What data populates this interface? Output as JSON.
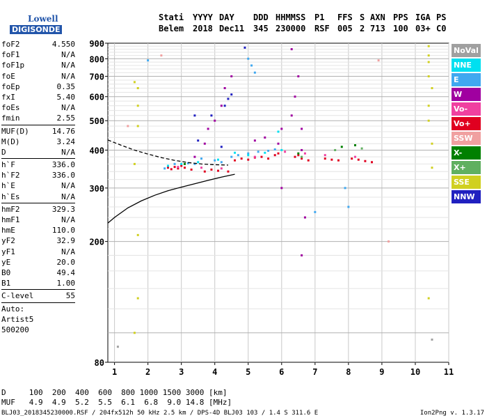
{
  "logo": {
    "line1": "Lowell",
    "line2": "DIGISONDE"
  },
  "header": {
    "row1": [
      "Stati",
      "YYYY",
      "DAY",
      "DDD",
      "HHMMSS",
      "P1",
      "FFS",
      "S",
      "AXN",
      "PPS",
      "IGA",
      "PS"
    ],
    "row2": [
      "Belem",
      "2018",
      "Dec11",
      "345",
      "230000",
      "RSF",
      "005",
      "2",
      "713",
      "100",
      "03+",
      "C0"
    ]
  },
  "params": [
    {
      "label": "foF2",
      "value": "4.550"
    },
    {
      "label": "foF1",
      "value": "N/A"
    },
    {
      "label": "foF1p",
      "value": "N/A"
    },
    {
      "label": "foE",
      "value": "N/A"
    },
    {
      "label": "foEp",
      "value": "0.35"
    },
    {
      "label": "fxI",
      "value": "5.40"
    },
    {
      "label": "foEs",
      "value": "N/A"
    },
    {
      "label": "fmin",
      "value": "2.55"
    },
    {
      "sep": true
    },
    {
      "label": "MUF(D)",
      "value": "14.76"
    },
    {
      "label": "M(D)",
      "value": "3.24"
    },
    {
      "label": "D",
      "value": "N/A"
    },
    {
      "sep": true
    },
    {
      "label": "h`F",
      "value": "336.0"
    },
    {
      "label": "h`F2",
      "value": "336.0"
    },
    {
      "label": "h`E",
      "value": "N/A"
    },
    {
      "label": "h`Es",
      "value": "N/A"
    },
    {
      "sep": true
    },
    {
      "label": "hmF2",
      "value": "329.3"
    },
    {
      "label": "hmF1",
      "value": "N/A"
    },
    {
      "label": "hmE",
      "value": "110.0"
    },
    {
      "label": "yF2",
      "value": "32.9"
    },
    {
      "label": "yF1",
      "value": "N/A"
    },
    {
      "label": "yE",
      "value": "20.0"
    },
    {
      "label": "B0",
      "value": "49.4"
    },
    {
      "label": "B1",
      "value": "1.00"
    },
    {
      "sep": true
    },
    {
      "label": "C-level",
      "value": "55"
    },
    {
      "sep": true
    },
    {
      "label": "Auto:",
      "value": ""
    },
    {
      "label": "Artist5",
      "value": ""
    },
    {
      "label": "500200",
      "value": ""
    }
  ],
  "legend": [
    {
      "label": "NoVal",
      "color": "#a0a0a0"
    },
    {
      "label": "NNE",
      "color": "#00e0f0"
    },
    {
      "label": "E",
      "color": "#40a8f0"
    },
    {
      "label": "W",
      "color": "#a000a0"
    },
    {
      "label": "Vo-",
      "color": "#f040a0"
    },
    {
      "label": "Vo+",
      "color": "#e00020"
    },
    {
      "label": "SSW",
      "color": "#f0a0a0"
    },
    {
      "label": "X-",
      "color": "#008000"
    },
    {
      "label": "X+",
      "color": "#60b060"
    },
    {
      "label": "SSE",
      "color": "#d0d020"
    },
    {
      "label": "NNW",
      "color": "#2020c0"
    }
  ],
  "footer": {
    "d_row": "D     100  200  400  600  800 1000 1500 3000 [km]",
    "muf_row": "MUF   4.9  4.9  5.2  5.5  6.1  6.8  9.0 14.8 [MHz]",
    "info": "BLJ03_2018345230000.RSF / 204fx512h 50 kHz 2.5 km / DPS-4D BLJ03 103 / 1.4 S 311.6 E",
    "version": "Ion2Png v. 1.3.17"
  },
  "chart_data": {
    "type": "scatter",
    "title": "",
    "xlabel": "",
    "ylabel": "",
    "xlim": [
      0.8,
      11
    ],
    "ylim": [
      80,
      900
    ],
    "x_ticks": [
      1,
      2,
      3,
      4,
      5,
      6,
      7,
      8,
      9,
      10,
      11
    ],
    "y_ticks": [
      80,
      200,
      300,
      400,
      500,
      600,
      700,
      800,
      900
    ],
    "y_scale": "log",
    "grid": true,
    "traces": [
      {
        "name": "",
        "style": "dashed",
        "color": "#000000",
        "x": [
          0.8,
          1.2,
          1.6,
          2.0,
          2.4,
          2.8,
          3.2,
          3.6,
          4.0,
          4.4
        ],
        "y": [
          432,
          415,
          400,
          388,
          378,
          370,
          364,
          360,
          358,
          357
        ]
      },
      {
        "name": "",
        "style": "solid",
        "color": "#000000",
        "x": [
          0.8,
          1.0,
          1.4,
          1.8,
          2.2,
          2.6,
          3.0,
          3.4,
          3.8,
          4.2,
          4.6
        ],
        "y": [
          230,
          240,
          258,
          272,
          284,
          294,
          302,
          310,
          318,
          326,
          333
        ]
      }
    ],
    "points": [
      {
        "c": "#e00020",
        "pts": [
          [
            2.6,
            350
          ],
          [
            2.7,
            346
          ],
          [
            2.8,
            352
          ],
          [
            2.9,
            348
          ],
          [
            3.0,
            355
          ],
          [
            3.1,
            350
          ],
          [
            3.3,
            345
          ],
          [
            3.7,
            340
          ],
          [
            3.9,
            345
          ],
          [
            4.1,
            342
          ],
          [
            4.4,
            340
          ],
          [
            4.6,
            370
          ],
          [
            4.8,
            375
          ],
          [
            5.0,
            372
          ],
          [
            5.2,
            378
          ],
          [
            5.4,
            380
          ],
          [
            5.6,
            375
          ],
          [
            5.8,
            385
          ],
          [
            5.9,
            390
          ],
          [
            6.4,
            380
          ],
          [
            6.5,
            385
          ],
          [
            6.6,
            375
          ],
          [
            6.8,
            370
          ],
          [
            7.3,
            375
          ],
          [
            7.5,
            372
          ],
          [
            7.7,
            370
          ],
          [
            8.1,
            375
          ],
          [
            8.3,
            372
          ],
          [
            8.5,
            368
          ],
          [
            8.7,
            365
          ]
        ]
      },
      {
        "c": "#a000a0",
        "pts": [
          [
            3.4,
            380
          ],
          [
            3.7,
            420
          ],
          [
            3.8,
            470
          ],
          [
            4.0,
            500
          ],
          [
            4.2,
            560
          ],
          [
            4.3,
            640
          ],
          [
            4.5,
            700
          ],
          [
            5.2,
            430
          ],
          [
            5.5,
            440
          ],
          [
            5.9,
            420
          ],
          [
            6.0,
            470
          ],
          [
            6.3,
            520
          ],
          [
            6.4,
            600
          ],
          [
            6.5,
            700
          ],
          [
            6.6,
            470
          ],
          [
            6.6,
            400
          ],
          [
            6.3,
            860
          ],
          [
            6.0,
            300
          ],
          [
            6.6,
            180
          ],
          [
            6.7,
            240
          ]
        ]
      },
      {
        "c": "#40a8f0",
        "pts": [
          [
            2.5,
            348
          ],
          [
            2.8,
            360
          ],
          [
            3.2,
            362
          ],
          [
            3.4,
            360
          ],
          [
            3.6,
            375
          ],
          [
            4.0,
            370
          ],
          [
            4.2,
            365
          ],
          [
            4.5,
            380
          ],
          [
            4.7,
            385
          ],
          [
            5.0,
            390
          ],
          [
            5.3,
            395
          ],
          [
            5.6,
            398
          ],
          [
            5.8,
            402
          ],
          [
            5.1,
            760
          ],
          [
            5.2,
            720
          ],
          [
            5.0,
            800
          ],
          [
            2.0,
            790
          ],
          [
            7.0,
            250
          ],
          [
            7.9,
            300
          ],
          [
            8.0,
            260
          ]
        ]
      },
      {
        "c": "#00e0f0",
        "pts": [
          [
            2.6,
            355
          ],
          [
            3.0,
            360
          ],
          [
            3.5,
            365
          ],
          [
            4.1,
            372
          ],
          [
            4.6,
            392
          ],
          [
            5.0,
            385
          ],
          [
            5.5,
            392
          ],
          [
            6.0,
            400
          ],
          [
            5.9,
            460
          ]
        ]
      },
      {
        "c": "#2020c0",
        "pts": [
          [
            3.5,
            430
          ],
          [
            3.9,
            520
          ],
          [
            4.3,
            560
          ],
          [
            4.4,
            590
          ],
          [
            4.5,
            610
          ],
          [
            4.9,
            870
          ],
          [
            4.2,
            410
          ],
          [
            3.4,
            520
          ]
        ]
      },
      {
        "c": "#f040a0",
        "pts": [
          [
            2.9,
            352
          ],
          [
            3.6,
            350
          ],
          [
            4.2,
            348
          ],
          [
            5.2,
            380
          ],
          [
            6.1,
            395
          ],
          [
            6.7,
            390
          ],
          [
            7.3,
            385
          ],
          [
            8.2,
            380
          ]
        ]
      },
      {
        "c": "#d0d020",
        "pts": [
          [
            1.6,
            670
          ],
          [
            1.7,
            640
          ],
          [
            1.7,
            560
          ],
          [
            1.7,
            480
          ],
          [
            1.6,
            360
          ],
          [
            1.7,
            210
          ],
          [
            1.7,
            130
          ],
          [
            1.6,
            100
          ],
          [
            10.4,
            880
          ],
          [
            10.4,
            820
          ],
          [
            10.4,
            780
          ],
          [
            10.4,
            700
          ],
          [
            10.5,
            640
          ],
          [
            10.4,
            560
          ],
          [
            10.4,
            500
          ],
          [
            10.5,
            420
          ],
          [
            10.5,
            350
          ],
          [
            10.4,
            130
          ]
        ]
      },
      {
        "c": "#008000",
        "pts": [
          [
            7.8,
            410
          ],
          [
            8.2,
            415
          ],
          [
            3.1,
            360
          ],
          [
            6.5,
            390
          ]
        ]
      },
      {
        "c": "#60b060",
        "pts": [
          [
            7.6,
            400
          ],
          [
            8.4,
            405
          ],
          [
            6.6,
            380
          ]
        ]
      },
      {
        "c": "#f0a0a0",
        "pts": [
          [
            2.4,
            820
          ],
          [
            1.4,
            480
          ],
          [
            8.9,
            790
          ],
          [
            9.2,
            200
          ]
        ]
      },
      {
        "c": "#a0a0a0",
        "pts": [
          [
            1.1,
            90
          ],
          [
            10.5,
            95
          ]
        ]
      }
    ]
  }
}
